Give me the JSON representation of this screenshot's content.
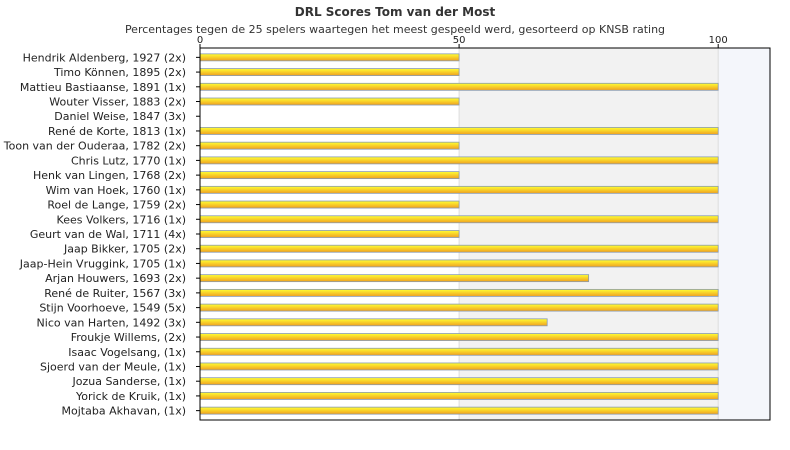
{
  "chart_data": {
    "type": "bar",
    "orientation": "horizontal",
    "title": "DRL Scores Tom van der Most",
    "subtitle": "Percentages tegen de 25 spelers waartegen het meest gespeeld werd, gesorteerd op KNSB rating",
    "xlim": [
      0,
      110
    ],
    "xticks": [
      0,
      50,
      100
    ],
    "grid": true,
    "categories": [
      "Hendrik Aldenberg, 1927 (2x)",
      "Timo Können, 1895 (2x)",
      "Mattieu Bastiaanse, 1891 (1x)",
      "Wouter Visser, 1883 (2x)",
      "Daniel Weise, 1847 (3x)",
      "René de Korte, 1813 (1x)",
      "Toon van der Ouderaa, 1782 (2x)",
      "Chris Lutz, 1770 (1x)",
      "Henk van Lingen, 1768 (2x)",
      "Wim van Hoek, 1760 (1x)",
      "Roel de Lange, 1759 (2x)",
      "Kees Volkers, 1716 (1x)",
      "Geurt van de Wal, 1711 (4x)",
      "Jaap Bikker, 1705 (2x)",
      "Jaap-Hein Vruggink, 1705 (1x)",
      "Arjan Houwers, 1693 (2x)",
      "René de Ruiter, 1567 (3x)",
      "Stijn Voorhoeve, 1549 (5x)",
      "Nico van Harten, 1492 (3x)",
      "Froukje Willems,  (2x)",
      "Isaac Vogelsang,  (1x)",
      "Sjoerd van der Meule,  (1x)",
      "Jozua Sanderse,  (1x)",
      "Yorick de Kruik,  (1x)",
      "Mojtaba Akhavan,  (1x)"
    ],
    "values": [
      50,
      50,
      100,
      50,
      0,
      100,
      50,
      100,
      50,
      100,
      50,
      100,
      50,
      100,
      100,
      75,
      100,
      100,
      67,
      100,
      100,
      100,
      100,
      100,
      100
    ]
  },
  "colors": {
    "bar_top": "#ffff33",
    "bar_bottom": "#f0a020",
    "bar_edge": "#8a9bb0",
    "band_low": "#ffffff",
    "band_mid": "#f2f2f2",
    "band_high": "#f4f6fb",
    "axis": "#000000",
    "grid": "#dddddd"
  }
}
